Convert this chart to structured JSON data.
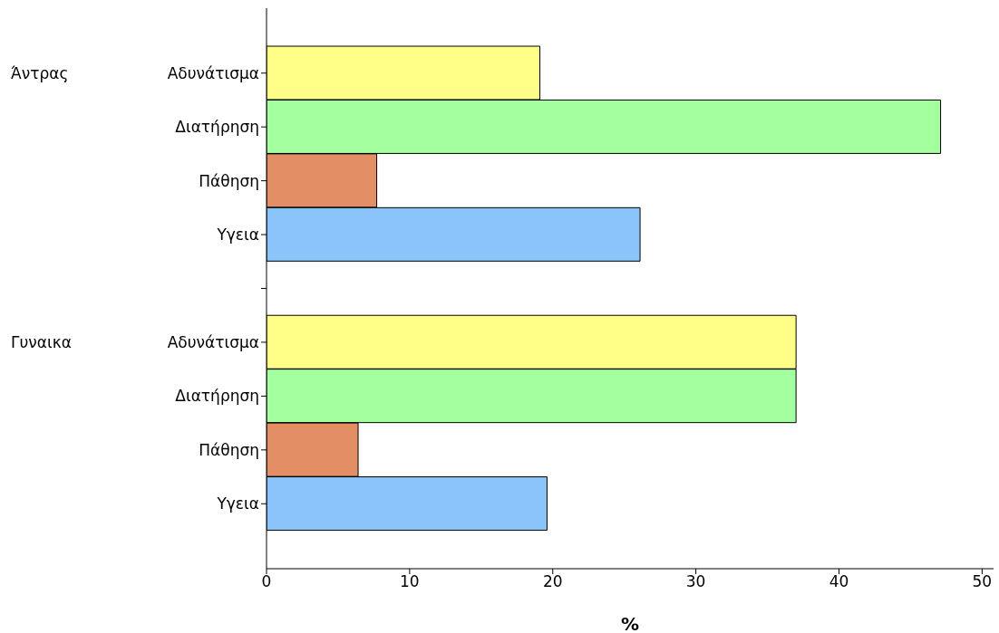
{
  "chart_data": {
    "type": "bar",
    "orientation": "horizontal",
    "xlabel": "%",
    "categories": [
      "Αδυνάτισμα",
      "Διατήρηση",
      "Πάθηση",
      "Υγεια",
      null,
      "Αδυνάτισμα",
      "Διατήρηση",
      "Πάθηση",
      "Υγεια"
    ],
    "values": [
      19.1,
      47.1,
      7.7,
      26.1,
      null,
      37.0,
      37.0,
      6.4,
      19.6
    ],
    "colors": [
      "#ffff88",
      "#a4ff9e",
      "#e38e64",
      "#8ac4fa",
      null,
      "#ffff88",
      "#a4ff9e",
      "#e38e64",
      "#8ac4fa"
    ],
    "annotations": [
      "Άντρας",
      "Γυναικα"
    ],
    "xlim": [
      0,
      50.8
    ],
    "xticks": [
      0,
      10,
      20,
      30,
      40,
      50
    ],
    "grid": false,
    "legend": false
  }
}
